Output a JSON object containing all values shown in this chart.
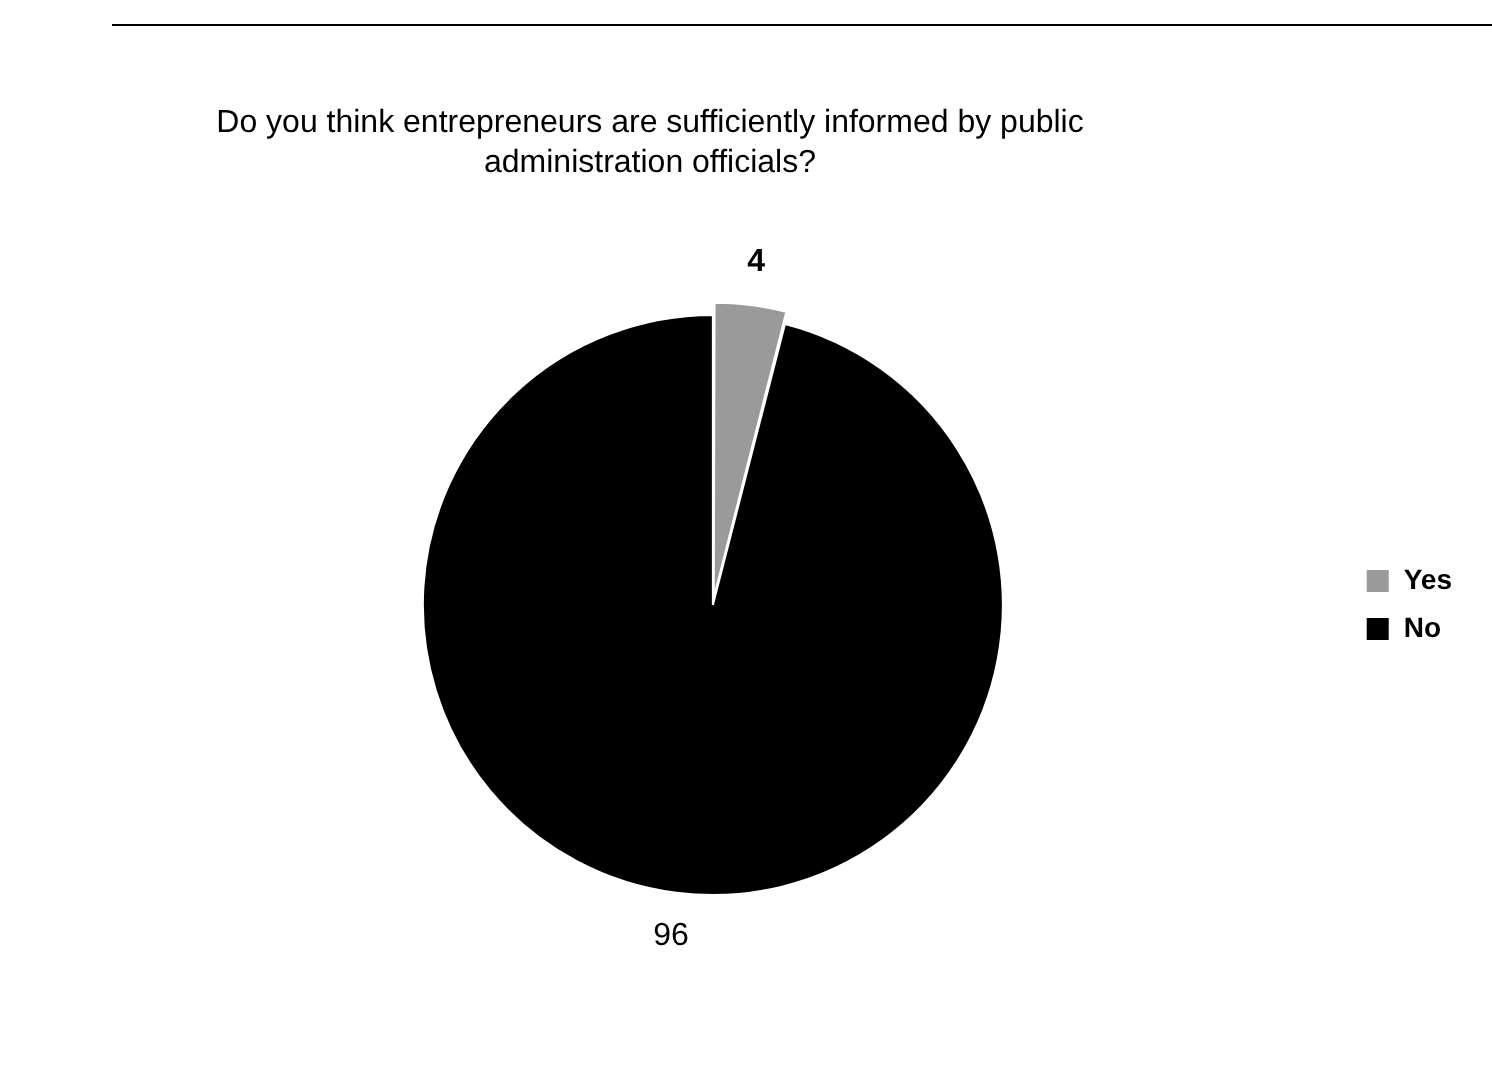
{
  "chart_data": {
    "type": "pie",
    "title": "Do you think entrepreneurs are sufficiently informed by public administration officials?",
    "categories": [
      "Yes",
      "No"
    ],
    "values": [
      4,
      96
    ],
    "colors": [
      "#9a9a9a",
      "#000000"
    ],
    "data_labels": true,
    "legend": "right"
  }
}
